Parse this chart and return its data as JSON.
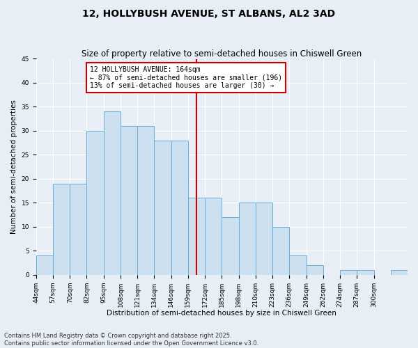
{
  "title": "12, HOLLYBUSH AVENUE, ST ALBANS, AL2 3AD",
  "subtitle": "Size of property relative to semi-detached houses in Chiswell Green",
  "xlabel": "Distribution of semi-detached houses by size in Chiswell Green",
  "ylabel": "Number of semi-detached properties",
  "bar_values": [
    4,
    19,
    19,
    30,
    34,
    31,
    31,
    28,
    28,
    16,
    16,
    12,
    15,
    15,
    10,
    4,
    2,
    0,
    1,
    1,
    0,
    1
  ],
  "bin_labels": [
    "44sqm",
    "57sqm",
    "70sqm",
    "82sqm",
    "95sqm",
    "108sqm",
    "121sqm",
    "134sqm",
    "146sqm",
    "159sqm",
    "172sqm",
    "185sqm",
    "198sqm",
    "210sqm",
    "223sqm",
    "236sqm",
    "249sqm",
    "262sqm",
    "274sqm",
    "287sqm",
    "300sqm"
  ],
  "bar_color": "#cce0f0",
  "bar_edge_color": "#6aafd6",
  "vline_color": "#cc0000",
  "annotation_text": "12 HOLLYBUSH AVENUE: 164sqm\n← 87% of semi-detached houses are smaller (196)\n13% of semi-detached houses are larger (30) →",
  "annotation_box_color": "#cc0000",
  "ylim": [
    0,
    45
  ],
  "yticks": [
    0,
    5,
    10,
    15,
    20,
    25,
    30,
    35,
    40,
    45
  ],
  "footnote": "Contains HM Land Registry data © Crown copyright and database right 2025.\nContains public sector information licensed under the Open Government Licence v3.0.",
  "bg_color": "#e8eef5",
  "grid_color": "#ffffff",
  "title_fontsize": 10,
  "subtitle_fontsize": 8.5,
  "axis_label_fontsize": 7.5,
  "tick_fontsize": 6.5,
  "annotation_fontsize": 7,
  "footnote_fontsize": 6
}
